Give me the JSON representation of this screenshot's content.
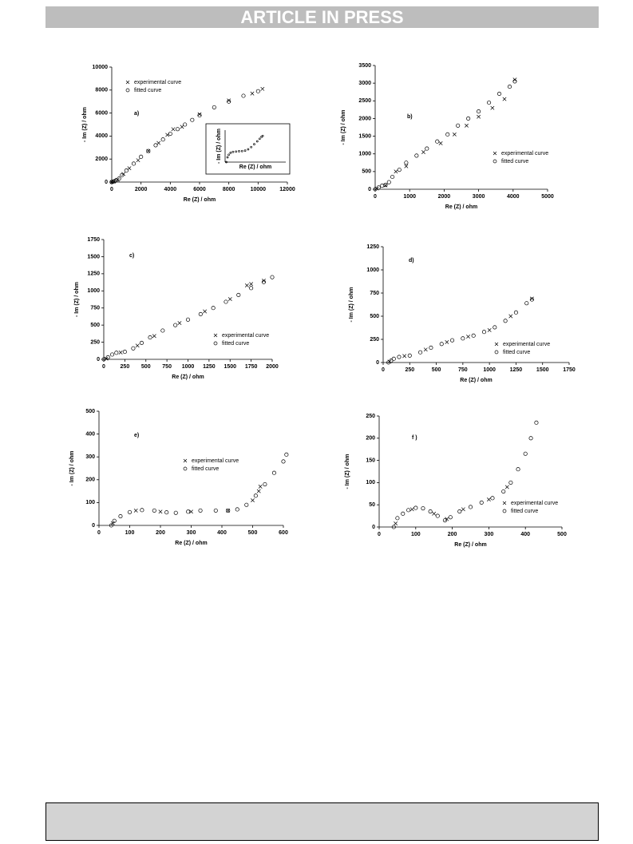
{
  "header": {
    "title": "ARTICLE IN PRESS"
  },
  "chart_data": [
    {
      "type": "scatter",
      "label": "a)",
      "x_label": "Re (Z) / ohm",
      "y_label": "- Im (Z) / ohm",
      "xlim": [
        0,
        12000
      ],
      "ylim": [
        0,
        10000
      ],
      "xticks": [
        0,
        2000,
        4000,
        6000,
        8000,
        10000,
        12000
      ],
      "yticks": [
        0,
        2000,
        4000,
        6000,
        8000,
        10000
      ],
      "series": [
        {
          "name": "experimental curve",
          "marker": "x",
          "color": "#000000",
          "x": [
            0,
            150,
            400,
            800,
            1200,
            1800,
            2500,
            3200,
            3800,
            4200,
            4800,
            6000,
            8000,
            9600,
            10300
          ],
          "values": [
            0,
            50,
            200,
            700,
            1200,
            1900,
            2700,
            3400,
            4100,
            4600,
            4800,
            5900,
            7100,
            7700,
            8100
          ]
        },
        {
          "name": "fitted curve",
          "marker": "o",
          "color": "#000000",
          "x": [
            0,
            100,
            200,
            300,
            500,
            700,
            1000,
            1500,
            2000,
            2500,
            3000,
            3500,
            4000,
            4500,
            5000,
            5500,
            6000,
            7000,
            8000,
            9000,
            10000
          ],
          "values": [
            0,
            30,
            80,
            150,
            300,
            600,
            1000,
            1600,
            2200,
            2700,
            3200,
            3700,
            4200,
            4600,
            5000,
            5400,
            5800,
            6500,
            7000,
            7500,
            7900
          ]
        }
      ]
    },
    {
      "type": "scatter",
      "label": "b)",
      "x_label": "Re (Z) / ohm",
      "y_label": "- Im (Z) / ohm",
      "xlim": [
        0,
        5000
      ],
      "ylim": [
        0,
        3500
      ],
      "xticks": [
        0,
        1000,
        2000,
        3000,
        4000,
        5000
      ],
      "yticks": [
        0,
        500,
        1000,
        1500,
        2000,
        2500,
        3000,
        3500
      ],
      "series": [
        {
          "name": "experimental curve",
          "marker": "x",
          "color": "#000000",
          "x": [
            50,
            300,
            600,
            900,
            1400,
            1900,
            2300,
            2650,
            3000,
            3400,
            3750,
            4050
          ],
          "values": [
            20,
            110,
            500,
            650,
            1050,
            1300,
            1550,
            1800,
            2050,
            2300,
            2550,
            3100
          ]
        },
        {
          "name": "fitted curve",
          "marker": "o",
          "color": "#000000",
          "x": [
            0,
            100,
            200,
            300,
            400,
            500,
            700,
            900,
            1200,
            1500,
            1800,
            2100,
            2400,
            2700,
            3000,
            3300,
            3600,
            3900,
            4050
          ],
          "values": [
            0,
            50,
            100,
            120,
            200,
            350,
            550,
            750,
            950,
            1150,
            1350,
            1550,
            1800,
            2000,
            2200,
            2450,
            2700,
            2900,
            3050
          ]
        }
      ]
    },
    {
      "type": "scatter",
      "label": "c)",
      "x_label": "Re (Z) / ohm",
      "y_label": "- Im (Z) / ohm",
      "xlim": [
        0,
        2000
      ],
      "ylim": [
        0,
        1750
      ],
      "xticks": [
        0,
        250,
        500,
        750,
        1000,
        1250,
        1500,
        1750,
        2000
      ],
      "yticks": [
        0,
        250,
        500,
        750,
        1000,
        1250,
        1500,
        1750
      ],
      "series": [
        {
          "name": "experimental curve",
          "marker": "x",
          "color": "#000000",
          "x": [
            30,
            200,
            400,
            600,
            900,
            1200,
            1500,
            1700,
            1750,
            1900
          ],
          "values": [
            10,
            100,
            200,
            340,
            530,
            700,
            880,
            1080,
            1100,
            1150
          ]
        },
        {
          "name": "fitted curve",
          "marker": "o",
          "color": "#000000",
          "x": [
            0,
            50,
            100,
            150,
            250,
            350,
            450,
            550,
            700,
            850,
            1000,
            1150,
            1300,
            1450,
            1600,
            1750,
            1900,
            2000
          ],
          "values": [
            0,
            30,
            70,
            95,
            110,
            160,
            240,
            320,
            420,
            500,
            580,
            660,
            750,
            840,
            940,
            1040,
            1130,
            1200
          ]
        }
      ]
    },
    {
      "type": "scatter",
      "label": "d)",
      "x_label": "Re (Z) / ohm",
      "y_label": "- Im (Z) / ohm",
      "xlim": [
        0,
        1750
      ],
      "ylim": [
        0,
        1250
      ],
      "xticks": [
        0,
        250,
        500,
        750,
        1000,
        1250,
        1500,
        1750
      ],
      "yticks": [
        0,
        250,
        500,
        750,
        1000,
        1250
      ],
      "series": [
        {
          "name": "experimental curve",
          "marker": "x",
          "color": "#000000",
          "x": [
            60,
            200,
            400,
            600,
            800,
            1000,
            1200,
            1400
          ],
          "values": [
            10,
            70,
            140,
            220,
            280,
            350,
            500,
            690
          ]
        },
        {
          "name": "fitted curve",
          "marker": "o",
          "color": "#000000",
          "x": [
            50,
            75,
            100,
            150,
            250,
            350,
            450,
            550,
            650,
            750,
            850,
            950,
            1050,
            1150,
            1250,
            1350,
            1400
          ],
          "values": [
            0,
            20,
            40,
            60,
            75,
            110,
            160,
            200,
            240,
            260,
            290,
            330,
            380,
            450,
            540,
            640,
            680
          ]
        }
      ]
    },
    {
      "type": "scatter",
      "label": "e)",
      "x_label": "Re (Z) / ohm",
      "y_label": "- Im (Z) / ohm",
      "xlim": [
        0,
        600
      ],
      "ylim": [
        0,
        500
      ],
      "xticks": [
        0,
        100,
        200,
        300,
        400,
        500,
        600
      ],
      "yticks": [
        0,
        100,
        200,
        300,
        400,
        500
      ],
      "series": [
        {
          "name": "experimental curve",
          "marker": "x",
          "color": "#000000",
          "x": [
            45,
            120,
            200,
            300,
            420,
            500,
            520,
            525
          ],
          "values": [
            10,
            65,
            60,
            60,
            65,
            110,
            150,
            170
          ]
        },
        {
          "name": "fitted curve",
          "marker": "o",
          "color": "#000000",
          "x": [
            40,
            50,
            70,
            100,
            140,
            180,
            220,
            250,
            290,
            330,
            380,
            420,
            450,
            480,
            510,
            540,
            570,
            600,
            610
          ],
          "values": [
            0,
            20,
            40,
            58,
            67,
            65,
            57,
            55,
            60,
            65,
            65,
            65,
            70,
            90,
            130,
            180,
            230,
            280,
            310
          ]
        }
      ]
    },
    {
      "type": "scatter",
      "label": "f )",
      "x_label": "Re (Z) / ohm",
      "y_label": "- Im (Z) / ohm",
      "xlim": [
        0,
        500
      ],
      "ylim": [
        0,
        250
      ],
      "xticks": [
        0,
        100,
        200,
        300,
        400,
        500
      ],
      "yticks": [
        0,
        50,
        100,
        150,
        200,
        250
      ],
      "series": [
        {
          "name": "experimental curve",
          "marker": "x",
          "color": "#000000",
          "x": [
            45,
            90,
            150,
            185,
            230,
            300,
            350
          ],
          "values": [
            8,
            40,
            30,
            18,
            40,
            62,
            90
          ]
        },
        {
          "name": "fitted curve",
          "marker": "o",
          "color": "#000000",
          "x": [
            40,
            50,
            65,
            80,
            100,
            120,
            140,
            160,
            180,
            195,
            220,
            250,
            280,
            310,
            340,
            360,
            380,
            400,
            415,
            430
          ],
          "values": [
            0,
            20,
            30,
            38,
            43,
            42,
            35,
            25,
            15,
            22,
            35,
            45,
            55,
            65,
            80,
            100,
            130,
            165,
            200,
            235
          ]
        }
      ]
    },
    {
      "type": "scatter",
      "x_label": "Re (Z) / ohm",
      "y_label": "- Im (Z) / ohm",
      "xlim": [
        0,
        1000
      ],
      "ylim": [
        0,
        1000
      ],
      "series": [
        {
          "marker": "o",
          "color": "#000000",
          "x": [
            20,
            40,
            60,
            90,
            130,
            180,
            230,
            280,
            330,
            380,
            430,
            480,
            530,
            570,
            600,
            620
          ],
          "values": [
            0,
            150,
            230,
            290,
            320,
            330,
            340,
            345,
            360,
            400,
            470,
            560,
            650,
            730,
            790,
            820
          ]
        }
      ]
    }
  ]
}
